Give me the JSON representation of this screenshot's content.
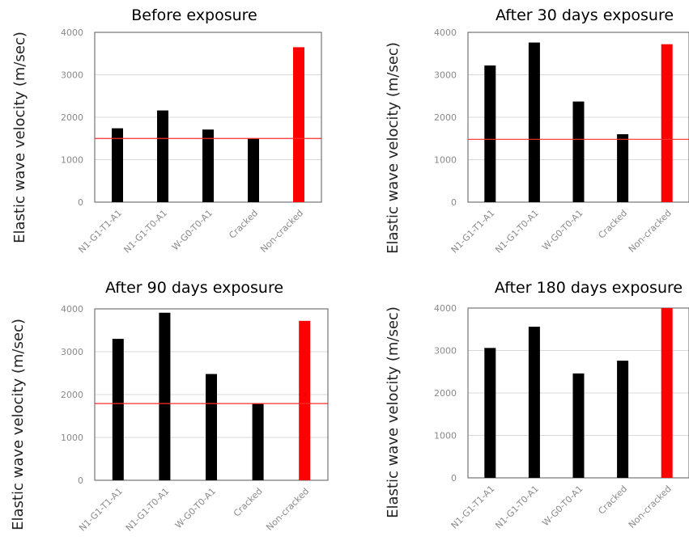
{
  "colors": {
    "bar": "#000000",
    "highlight": "#ff0000",
    "reference_line": "#ff2b2b"
  },
  "chart_data": [
    {
      "type": "bar",
      "title": "Before exposure",
      "ylabel": "Elastic wave velocity (m/sec)",
      "categories": [
        "N1-G1-T1-A1",
        "N1-G1-T0-A1",
        "W-G0-T0-A1",
        "Cracked",
        "Non-cracked"
      ],
      "values": [
        1740,
        2160,
        1710,
        1500,
        3650
      ],
      "yticks": [
        "0",
        "1000",
        "2000",
        "3000",
        "4000"
      ],
      "ylim": [
        0,
        4000
      ],
      "reference_line": 1500,
      "highlight_index": 4,
      "grid": true
    },
    {
      "type": "bar",
      "title": "After 30 days exposure",
      "ylabel": "Elastic wave velocity (m/sec)",
      "categories": [
        "N1-G1-T1-A1",
        "N1-G1-T0-A1",
        "W-G0-T0-A1",
        "Cracked",
        "Non-cracked"
      ],
      "values": [
        3220,
        3760,
        2370,
        1600,
        3720
      ],
      "yticks": [
        "0",
        "1000",
        "2000",
        "3000",
        "4000"
      ],
      "ylim": [
        0,
        4000
      ],
      "reference_line": 1480,
      "highlight_index": 4,
      "grid": true
    },
    {
      "type": "bar",
      "title": "After 90 days exposure",
      "ylabel": "Elastic wave velocity (m/sec)",
      "categories": [
        "N1-G1-T1-A1",
        "N1-G1-T0-A1",
        "W-G0-T0-A1",
        "Cracked",
        "Non-cracked"
      ],
      "values": [
        3300,
        3910,
        2480,
        1790,
        3720
      ],
      "yticks": [
        "0",
        "1000",
        "2000",
        "3000",
        "4000"
      ],
      "ylim": [
        0,
        4000
      ],
      "reference_line": 1790,
      "highlight_index": 4,
      "grid": true
    },
    {
      "type": "bar",
      "title": "After 180 days exposure",
      "ylabel": "Elastic wave velocity (m/sec)",
      "categories": [
        "N1-G1-T1-A1",
        "N1-G1-T0-A1",
        "W-G0-T0-A1",
        "Cracked",
        "Non-cracked"
      ],
      "values": [
        3060,
        3560,
        2460,
        2760,
        4000
      ],
      "yticks": [
        "0",
        "1000",
        "2000",
        "3000",
        "4000"
      ],
      "ylim": [
        0,
        4000
      ],
      "reference_line": null,
      "highlight_index": 4,
      "grid": true
    }
  ]
}
